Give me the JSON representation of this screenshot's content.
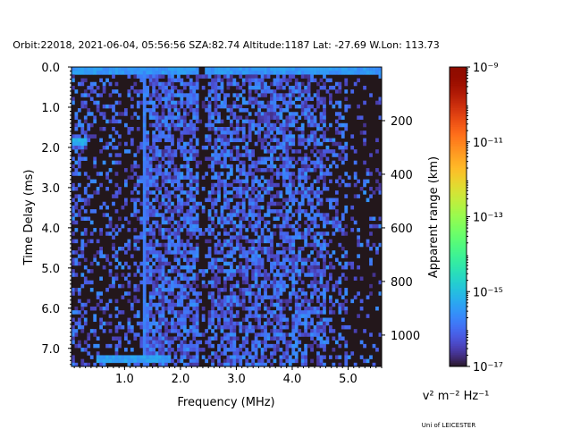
{
  "chart_data": {
    "type": "heatmap",
    "title": "Orbit:22018, 2021-06-04, 05:56:56 SZA:82.74 Altitude:1187 Lat: -27.69 W.Lon: 113.73",
    "xlabel": "Frequency (MHz)",
    "ylabel": "Time Delay (ms)",
    "ylabel_right": "Apparent range (km)",
    "xlim": [
      0.05,
      5.6
    ],
    "ylim": [
      7.45,
      0.0
    ],
    "x_ticks": [
      1.0,
      2.0,
      3.0,
      4.0,
      5.0
    ],
    "x_tick_labels": [
      "1.0",
      "2.0",
      "3.0",
      "4.0",
      "5.0"
    ],
    "y_ticks": [
      0.0,
      1.0,
      2.0,
      3.0,
      4.0,
      5.0,
      6.0,
      7.0
    ],
    "y_tick_labels": [
      "0.0",
      "1.0",
      "2.0",
      "3.0",
      "4.0",
      "5.0",
      "6.0",
      "7.0"
    ],
    "y_right_ticks": [
      200,
      400,
      600,
      800,
      1000
    ],
    "y_right_tick_labels": [
      "200",
      "400",
      "600",
      "800",
      "1000"
    ],
    "range_max_km": 1117,
    "colorbar": {
      "min_exp": -17,
      "max_exp": -9,
      "tick_exponents": [
        -17,
        -15,
        -13,
        -11,
        -9
      ],
      "tick_labels": [
        "10⁻¹⁷",
        "10⁻¹⁵",
        "10⁻¹³",
        "10⁻¹¹",
        "10⁻⁹"
      ],
      "units": "v² m⁻² Hz⁻¹",
      "colormap": "turbo"
    },
    "grid": {
      "n_freq": 100,
      "n_delay": 80,
      "background_exp": -17,
      "features": [
        {
          "name": "top echo band",
          "delay_ms": 0.12,
          "freq_range": [
            0.05,
            5.6
          ],
          "level_exp": -15.3
        },
        {
          "name": "left echo cluster",
          "delay_ms": 1.85,
          "freq_range": [
            0.05,
            0.3
          ],
          "level_exp": -15.0
        },
        {
          "name": "bottom echo",
          "delay_ms": 7.25,
          "freq_range": [
            0.5,
            1.8
          ],
          "level_exp": -15.2
        },
        {
          "name": "vertical line",
          "freq_mhz": 1.35,
          "level_exp": -15.8
        }
      ]
    }
  },
  "footer": {
    "credit": "Uni of LEICESTER"
  },
  "colors": {
    "background": "#ffffff",
    "axis": "#000000"
  }
}
